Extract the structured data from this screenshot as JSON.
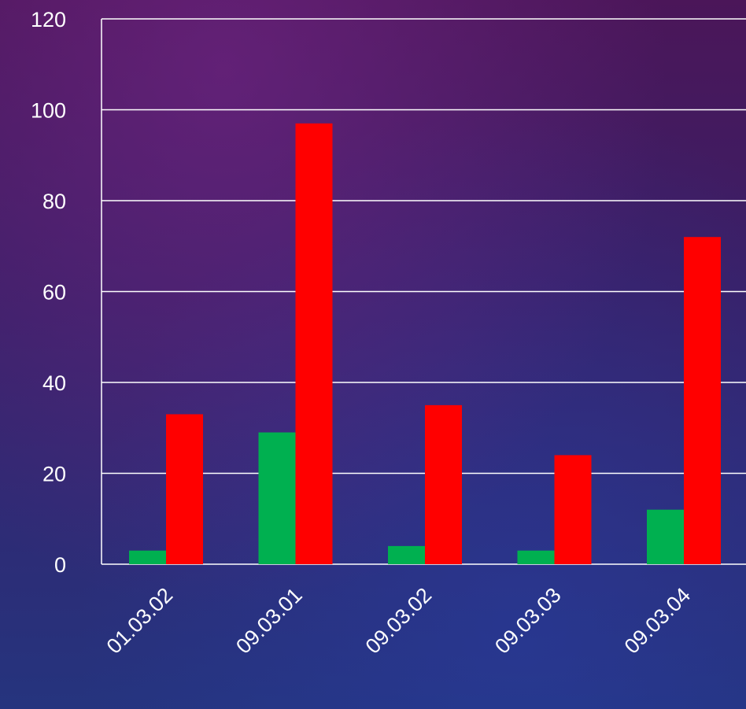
{
  "chart_data": {
    "type": "bar",
    "categories": [
      "01.03.02",
      "09.03.01",
      "09.03.02",
      "09.03.03",
      "09.03.04"
    ],
    "series": [
      {
        "color": "#00b050",
        "values": [
          3,
          29,
          4,
          3,
          12
        ]
      },
      {
        "color": "#ff0000",
        "values": [
          33,
          97,
          35,
          24,
          72
        ]
      }
    ],
    "y_ticks": [
      "0",
      "20",
      "40",
      "60",
      "80",
      "100",
      "120"
    ],
    "ylim": [
      0,
      120
    ],
    "grid": true,
    "grid_color": "#ffffff",
    "text_color": "#ffffff"
  }
}
